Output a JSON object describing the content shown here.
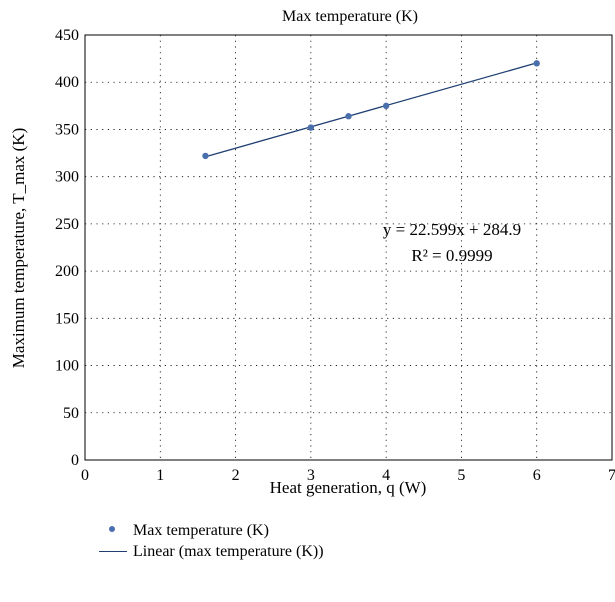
{
  "chart_data": {
    "type": "scatter",
    "title": "Max temperature (K)",
    "xlabel": "Heat generation, q (W)",
    "ylabel": "Maximum temperature, T_max (K)",
    "xlim": [
      0,
      7
    ],
    "ylim": [
      0,
      450
    ],
    "xticks": [
      "0",
      "1",
      "2",
      "3",
      "4",
      "5",
      "6",
      "7"
    ],
    "yticks": [
      "0",
      "50",
      "100",
      "150",
      "200",
      "250",
      "300",
      "350",
      "400",
      "450"
    ],
    "grid": "dotted",
    "legend_position": "bottom",
    "series": [
      {
        "name": "Max temperature (K)",
        "kind": "markers",
        "color": "#4a6fad",
        "x": [
          1.6,
          3.0,
          3.5,
          4.0,
          6.0
        ],
        "y": [
          322,
          352,
          364,
          375,
          420
        ]
      },
      {
        "name": "Linear (max temperature (K))",
        "kind": "line",
        "color": "#1f3f73",
        "x": [
          1.6,
          6.0
        ],
        "y": [
          321.1,
          420.5
        ]
      }
    ],
    "annotation": {
      "equation": "y = 22.599x + 284.9",
      "r_squared": "R² = 0.9999"
    }
  }
}
